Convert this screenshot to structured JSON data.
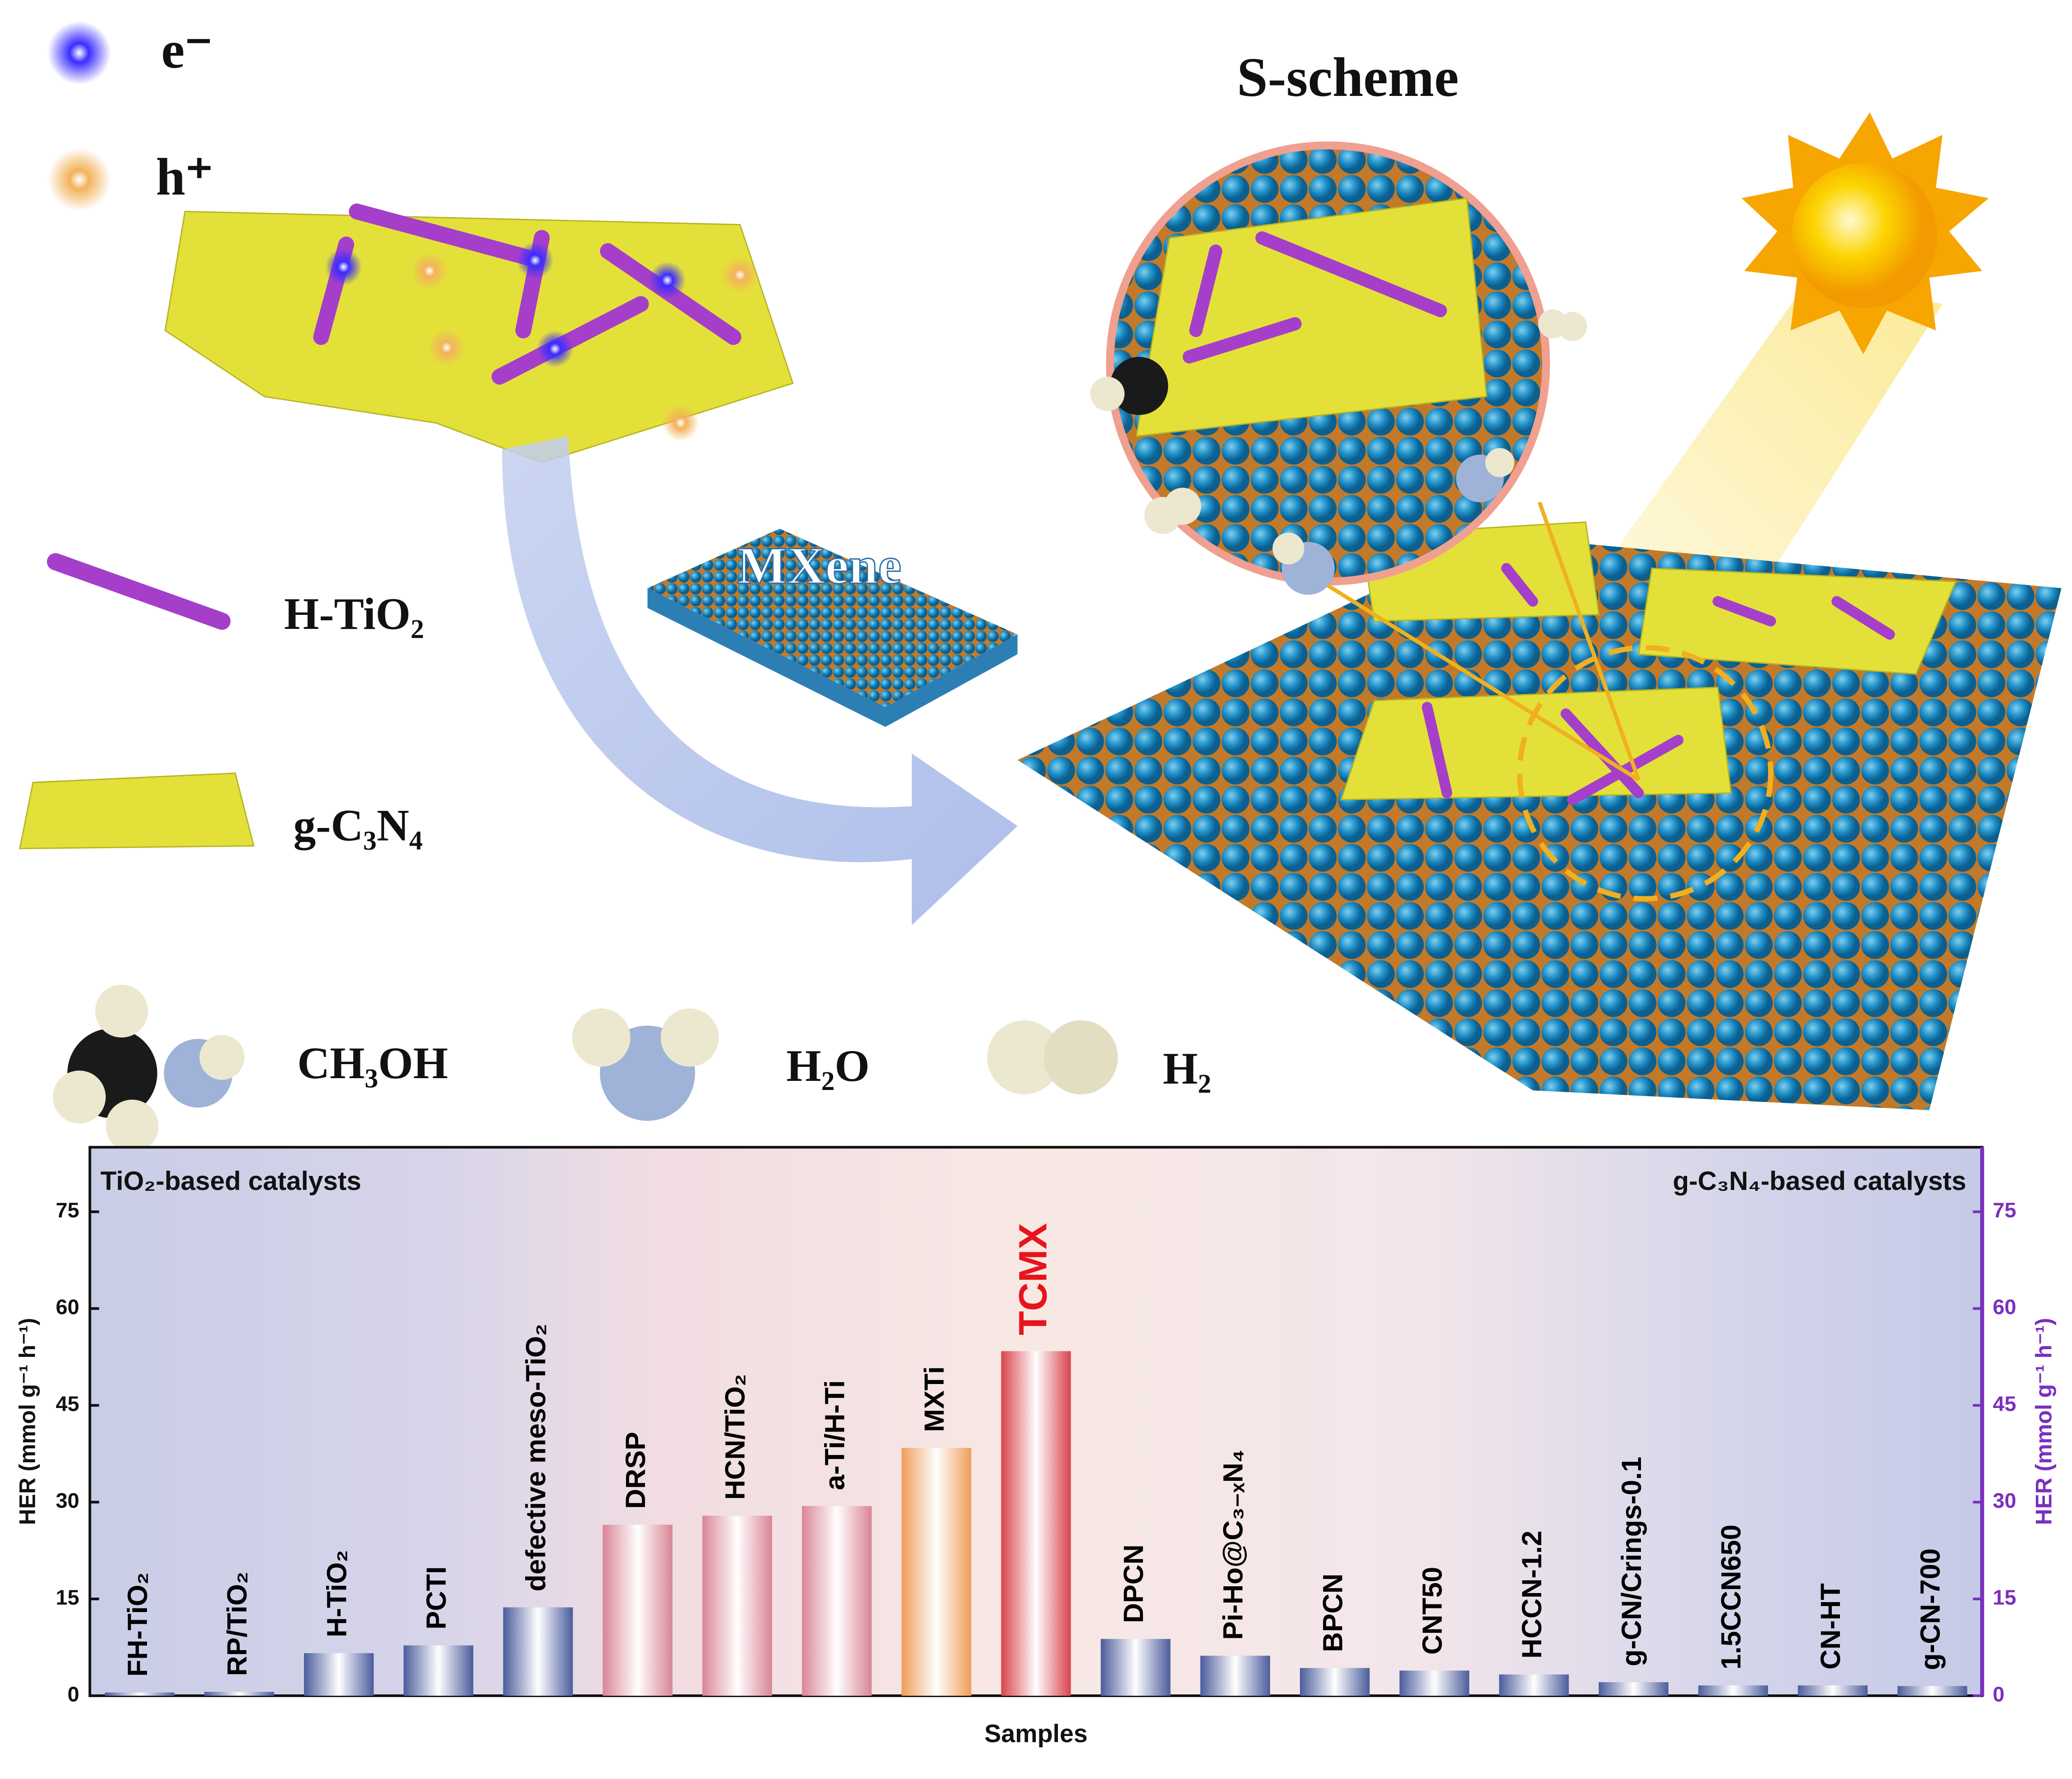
{
  "illustration": {
    "title": "S-scheme",
    "carriers": [
      "e⁻",
      "h⁺"
    ],
    "components": [
      "H-TiO₂",
      "g-C₃N₄"
    ],
    "mxene": "MXene",
    "molecules": [
      "CH₃OH",
      "H₂O",
      "H₂"
    ]
  },
  "chart_data": {
    "type": "bar",
    "categories": [
      "FH-TiO₂",
      "RP/TiO₂",
      "H-TiO₂",
      "PCTI",
      "defective meso-TiO₂",
      "DRSP",
      "HCN/TiO₂",
      "a-Ti/H-Ti",
      "MXTi",
      "TCMX",
      "DPCN",
      "Pi-Ho@C₃₋ₓN₄",
      "BPCN",
      "CNT50",
      "HCCN-1.2",
      "g-CN/Crings-0.1",
      "1.5CCN650",
      "CN-HT",
      "g-CN-700"
    ],
    "values": [
      0.5,
      0.6,
      6.6,
      7.8,
      13.7,
      26.5,
      27.9,
      29.4,
      38.4,
      53.4,
      8.8,
      6.2,
      4.3,
      3.9,
      3.3,
      2.1,
      1.6,
      1.6,
      1.5
    ],
    "colors": [
      "#4b5c9c",
      "#4b5c9c",
      "#4b5c9c",
      "#4b5c9c",
      "#4b5c9c",
      "#d98595",
      "#d98595",
      "#d98595",
      "#ef9d5a",
      "#d9434c",
      "#4b5c9c",
      "#4b5c9c",
      "#4b5c9c",
      "#4b5c9c",
      "#4b5c9c",
      "#4b5c9c",
      "#4b5c9c",
      "#4b5c9c",
      "#4b5c9c"
    ],
    "label_colors": [
      "#000000",
      "#000000",
      "#000000",
      "#000000",
      "#000000",
      "#000000",
      "#000000",
      "#000000",
      "#000000",
      "#e8141b",
      "#000000",
      "#000000",
      "#000000",
      "#000000",
      "#000000",
      "#000000",
      "#000000",
      "#000000",
      "#000000"
    ],
    "ylabel": "HER (mmol g⁻¹ h⁻¹)",
    "y2label": "HER (mmol g⁻¹ h⁻¹)",
    "xlabel": "Samples",
    "annotations": [
      "TiO₂-based catalysts",
      "g-C₃N₄-based catalysts"
    ],
    "ylim": [
      0,
      85
    ],
    "yticks": [
      0,
      15,
      30,
      45,
      60,
      75
    ],
    "y2lim": [
      0,
      85
    ],
    "y2ticks": [
      0,
      15,
      30,
      45,
      60,
      75
    ],
    "y2color": "#7b2fbe"
  }
}
